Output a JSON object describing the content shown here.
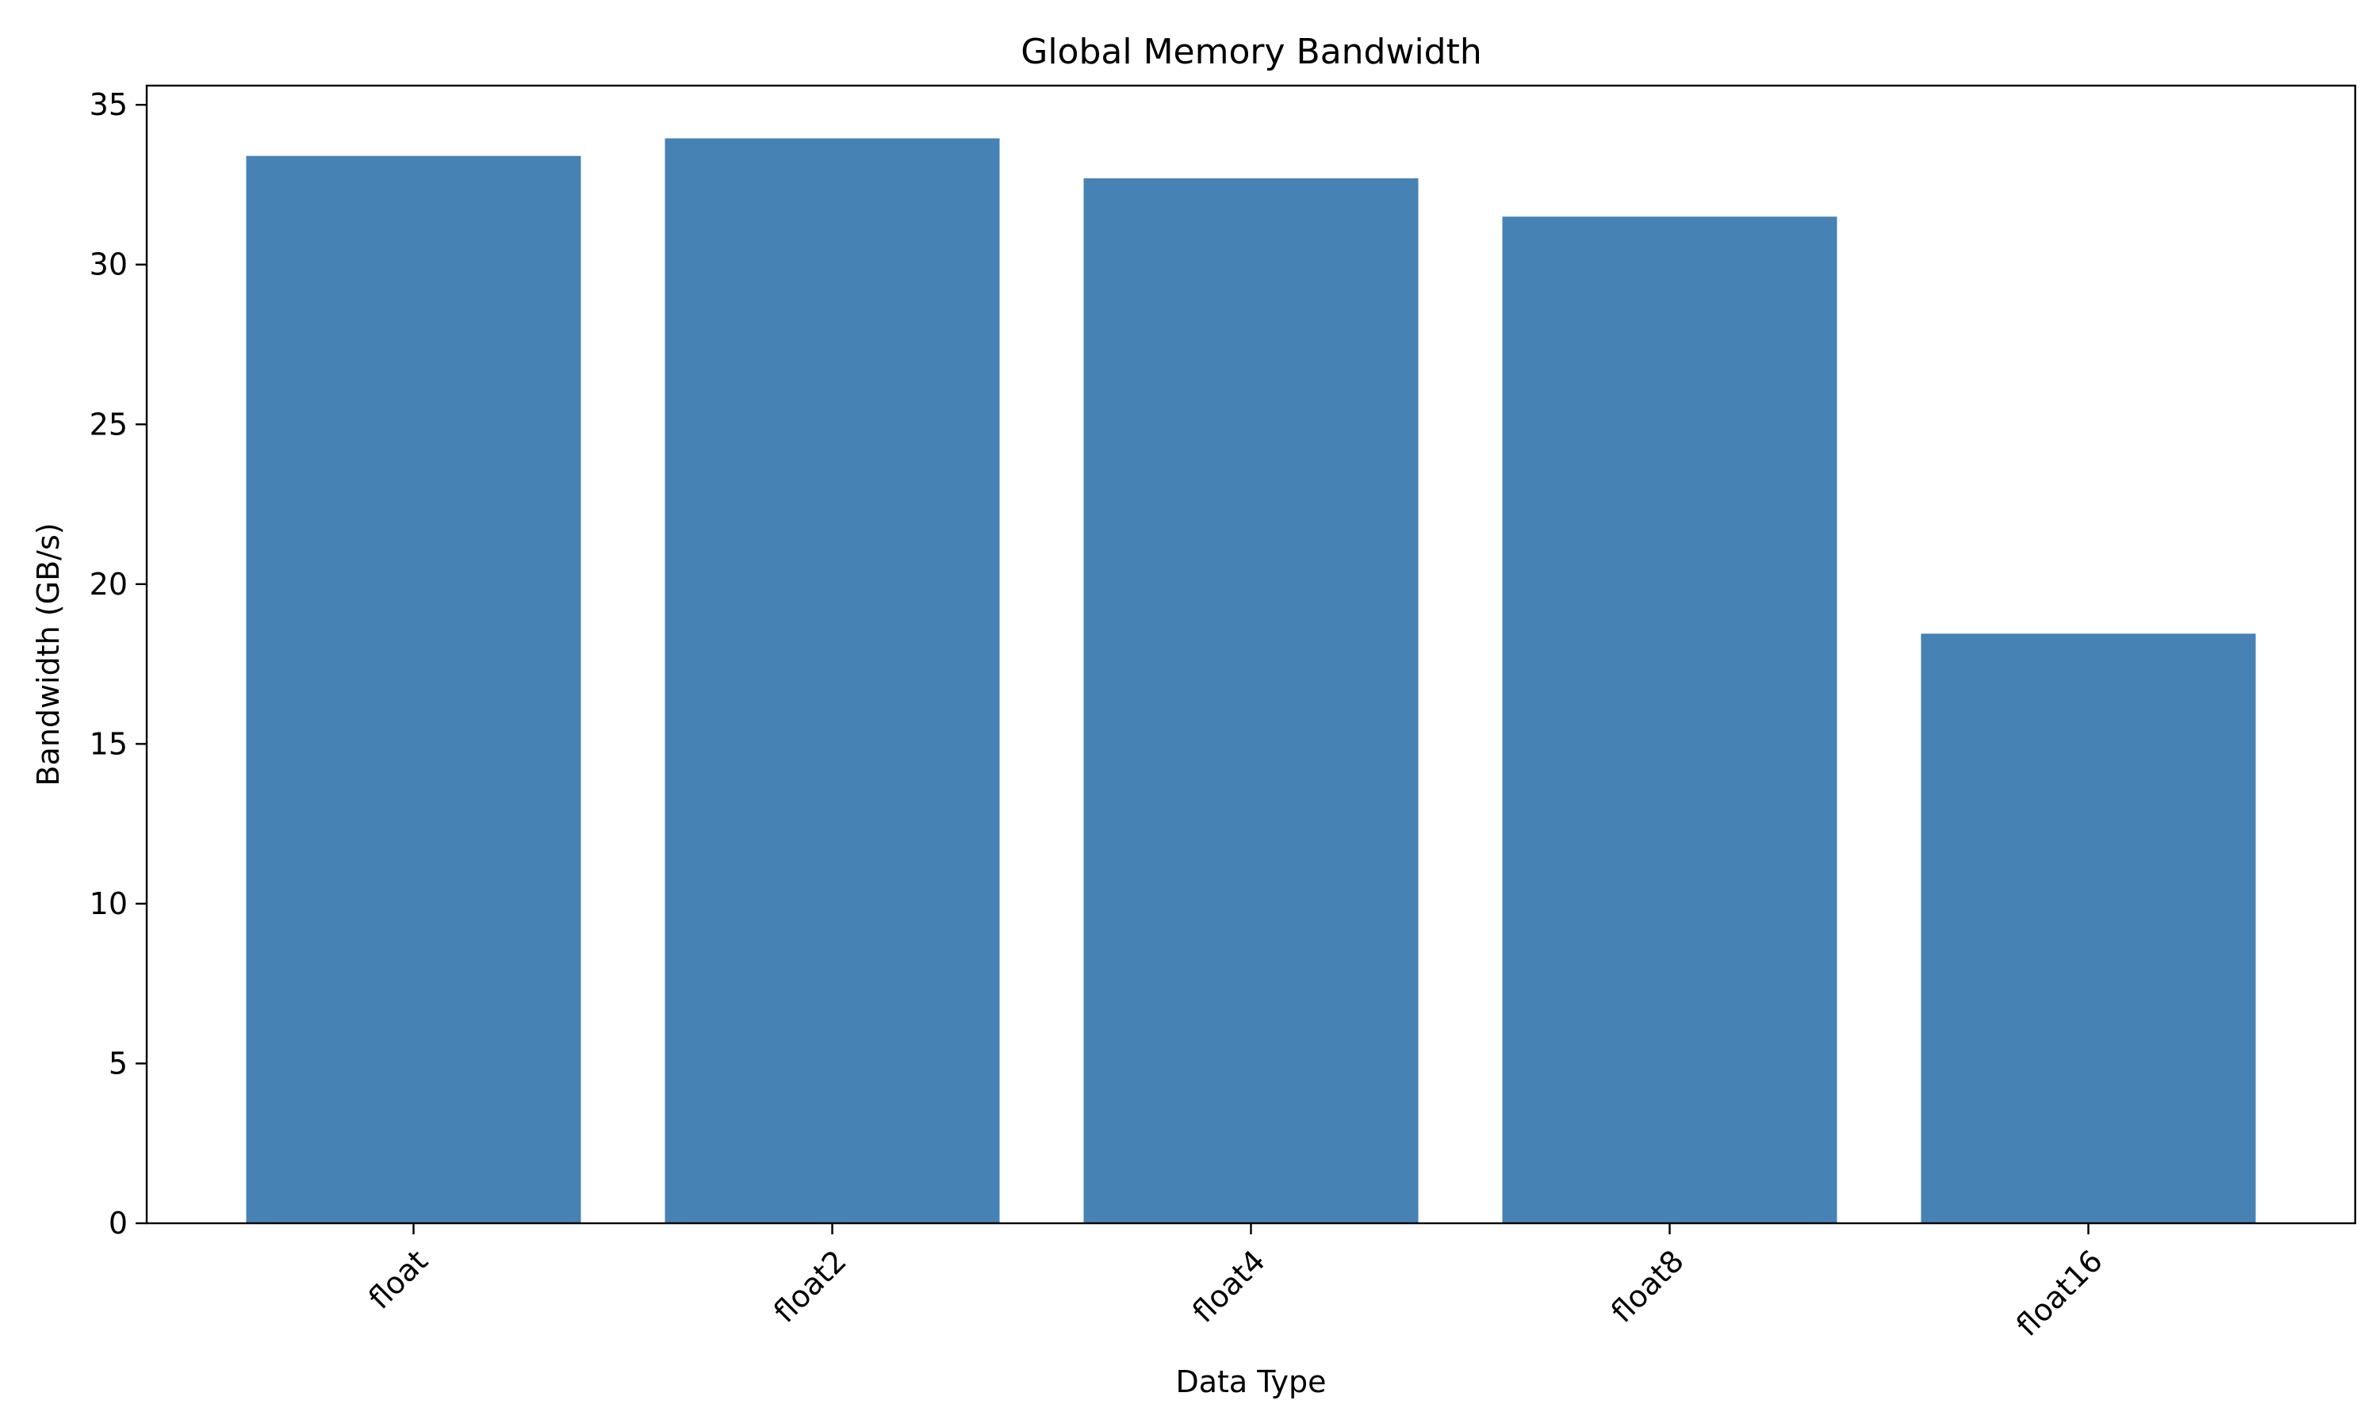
{
  "chart_data": {
    "type": "bar",
    "title": "Global Memory Bandwidth",
    "xlabel": "Data Type",
    "ylabel": "Bandwidth (GB/s)",
    "categories": [
      "float",
      "float2",
      "float4",
      "float8",
      "float16"
    ],
    "values": [
      33.4,
      33.95,
      32.7,
      31.5,
      18.45
    ],
    "ylim": [
      0,
      35.6
    ],
    "yticks": [
      0,
      5,
      10,
      15,
      20,
      25,
      30,
      35
    ],
    "grid": false,
    "legend": "none",
    "bar_color": "#4682b4",
    "x_tick_rotation_deg": 45
  }
}
